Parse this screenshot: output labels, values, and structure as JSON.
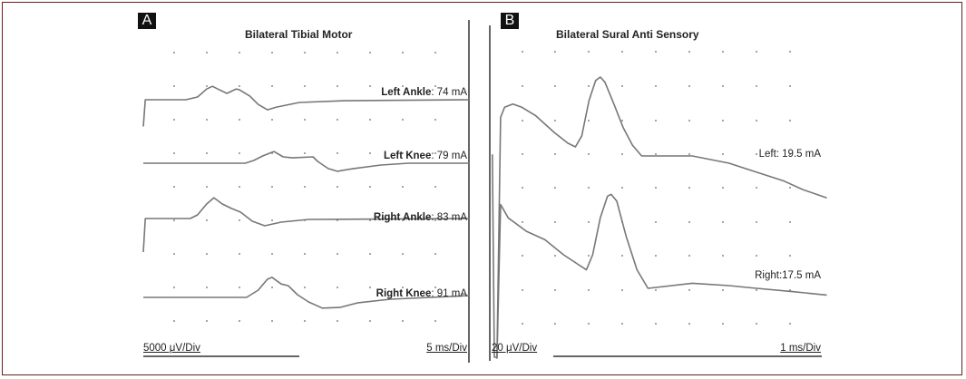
{
  "chart_data": [
    {
      "type": "line",
      "panel_label": "A",
      "title": "Bilateral Tibial Motor",
      "x_scale": "5 ms/Div",
      "y_scale": "5000 μV/Div",
      "grid": "dotted",
      "x_unit": "ms",
      "y_unit": "μV",
      "series": [
        {
          "name": "Left Ankle",
          "stim": "74 mA",
          "points": [
            [
              0,
              -4000
            ],
            [
              0.3,
              0
            ],
            [
              6.5,
              0
            ],
            [
              8.3,
              400
            ],
            [
              9.7,
              1600
            ],
            [
              10.6,
              2000
            ],
            [
              11.4,
              1600
            ],
            [
              12.8,
              950
            ],
            [
              14.2,
              1600
            ],
            [
              14.7,
              1500
            ],
            [
              16.3,
              550
            ],
            [
              17.6,
              -700
            ],
            [
              19.0,
              -1500
            ],
            [
              20.4,
              -1100
            ],
            [
              23.9,
              -400
            ],
            [
              30.8,
              -150
            ],
            [
              50,
              0
            ]
          ]
        },
        {
          "name": "Left Knee",
          "stim": "79 mA",
          "points": [
            [
              0,
              0
            ],
            [
              15.6,
              0
            ],
            [
              16.9,
              400
            ],
            [
              18.3,
              1100
            ],
            [
              20.0,
              1750
            ],
            [
              21.4,
              950
            ],
            [
              22.8,
              800
            ],
            [
              26.0,
              950
            ],
            [
              26.7,
              270
            ],
            [
              28.3,
              -800
            ],
            [
              29.7,
              -1200
            ],
            [
              32.2,
              -800
            ],
            [
              36.4,
              -270
            ],
            [
              40.6,
              0
            ],
            [
              50,
              0
            ]
          ]
        },
        {
          "name": "Right Ankle",
          "stim": "83 mA",
          "points": [
            [
              0,
              -5000
            ],
            [
              0.3,
              0
            ],
            [
              7.2,
              0
            ],
            [
              8.3,
              540
            ],
            [
              9.7,
              2160
            ],
            [
              10.8,
              3100
            ],
            [
              12.1,
              2160
            ],
            [
              13.5,
              1500
            ],
            [
              14.9,
              950
            ],
            [
              16.7,
              -400
            ],
            [
              18.6,
              -1080
            ],
            [
              21.1,
              -540
            ],
            [
              25.3,
              -135
            ],
            [
              50,
              0
            ]
          ]
        },
        {
          "name": "Right Knee",
          "stim": "91 mA",
          "points": [
            [
              0,
              0
            ],
            [
              15.8,
              0
            ],
            [
              17.6,
              1080
            ],
            [
              19.0,
              2700
            ],
            [
              19.7,
              3000
            ],
            [
              21.1,
              2000
            ],
            [
              22.2,
              1750
            ],
            [
              23.6,
              400
            ],
            [
              25.3,
              -670
            ],
            [
              27.4,
              -1600
            ],
            [
              30.1,
              -1500
            ],
            [
              32.9,
              -800
            ],
            [
              37.8,
              -270
            ],
            [
              50,
              270
            ]
          ]
        }
      ]
    },
    {
      "type": "line",
      "panel_label": "B",
      "title": "Bilateral Sural Anti Sensory",
      "x_scale": "1 ms/Div",
      "y_scale": "20 μV/Div",
      "grid": "dotted",
      "x_unit": "ms",
      "y_unit": "μV",
      "series": [
        {
          "name": "Left",
          "stim": "19.5 mA",
          "label": "Left: 19.5 mA",
          "points": [
            [
              -0.06,
              1
            ],
            [
              0,
              -120
            ],
            [
              0.08,
              -120
            ],
            [
              0.19,
              23
            ],
            [
              0.31,
              29
            ],
            [
              0.56,
              31
            ],
            [
              0.83,
              29
            ],
            [
              1.25,
              24
            ],
            [
              1.81,
              14
            ],
            [
              2.22,
              7.6
            ],
            [
              2.45,
              5.4
            ],
            [
              2.64,
              12
            ],
            [
              2.86,
              33
            ],
            [
              3.06,
              45
            ],
            [
              3.2,
              47
            ],
            [
              3.34,
              44
            ],
            [
              3.61,
              31
            ],
            [
              3.89,
              17
            ],
            [
              4.17,
              6.5
            ],
            [
              4.45,
              0
            ],
            [
              5.98,
              0
            ],
            [
              7.09,
              -4.3
            ],
            [
              7.92,
              -9.7
            ],
            [
              8.76,
              -15
            ],
            [
              9.31,
              -20
            ],
            [
              10.04,
              -25
            ]
          ]
        },
        {
          "name": "Right",
          "stim": "17.5 mA",
          "label": "Right:17.5 mA",
          "points": [
            [
              0.08,
              -42
            ],
            [
              0.19,
              50
            ],
            [
              0.42,
              42
            ],
            [
              0.97,
              34
            ],
            [
              1.53,
              29
            ],
            [
              2.09,
              20
            ],
            [
              2.78,
              11
            ],
            [
              2.97,
              20
            ],
            [
              3.2,
              42
            ],
            [
              3.42,
              55
            ],
            [
              3.53,
              56
            ],
            [
              3.7,
              52
            ],
            [
              3.98,
              31
            ],
            [
              4.31,
              11
            ],
            [
              4.64,
              0
            ],
            [
              5.98,
              3
            ],
            [
              7.09,
              1.6
            ],
            [
              7.92,
              0
            ],
            [
              9.03,
              -2
            ],
            [
              10.04,
              -4
            ]
          ]
        }
      ]
    }
  ],
  "colors": {
    "trace": "#777777",
    "frame": "#5b2424",
    "text": "#222222"
  }
}
